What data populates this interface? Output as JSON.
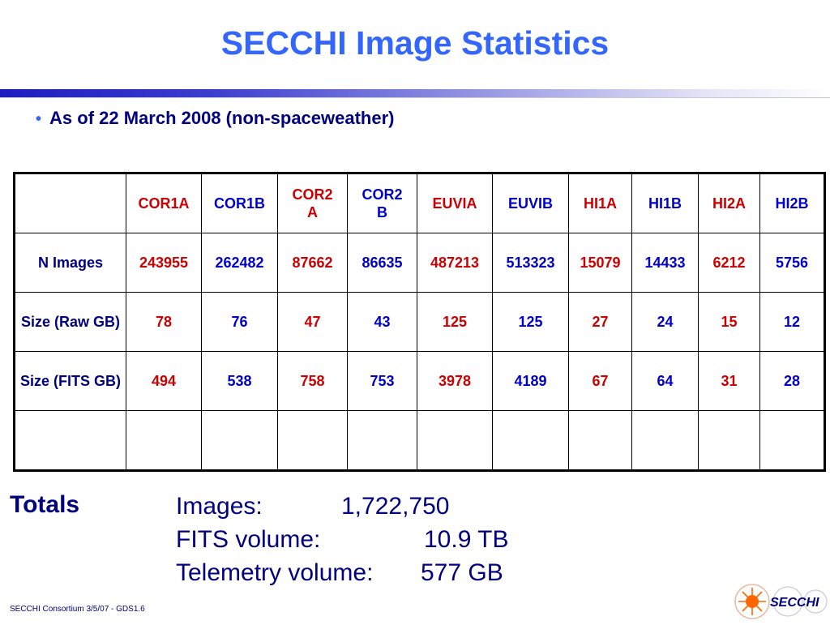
{
  "title": "SECCHI Image Statistics",
  "bullet": "As of 22 March 2008 (non-spaceweather)",
  "table": {
    "columns": [
      "COR1A",
      "COR1B",
      "COR2\nA",
      "COR2\nB",
      "EUVIA",
      "EUVIB",
      "HI1A",
      "HI1B",
      "HI2A",
      "HI2B"
    ],
    "rows": [
      {
        "label": "N Images",
        "values": [
          "243955",
          "262482",
          "87662",
          "86635",
          "487213",
          "513323",
          "15079",
          "14433",
          "6212",
          "5756"
        ]
      },
      {
        "label": "Size (Raw GB)",
        "values": [
          "78",
          "76",
          "47",
          "43",
          "125",
          "125",
          "27",
          "24",
          "15",
          "12"
        ]
      },
      {
        "label": "Size (FITS GB)",
        "values": [
          "494",
          "538",
          "758",
          "753",
          "3978",
          "4189",
          "67",
          "64",
          "31",
          "28"
        ]
      }
    ]
  },
  "totals": {
    "label": "Totals",
    "images_label": "Images:",
    "images_value": "1,722,750",
    "fits_label": "FITS volume:",
    "fits_value": "10.9 TB",
    "telemetry_label": "Telemetry volume:",
    "telemetry_value": "577 GB"
  },
  "footer": "SECCHI Consortium 3/5/07 - GDS1.6",
  "logo": {
    "text": "SECCHI",
    "icon": "secchi-sun-logo-icon"
  },
  "colors": {
    "title": "#3366ff",
    "text": "#000080",
    "red": "#cc0000",
    "blue": "#0000cc"
  }
}
